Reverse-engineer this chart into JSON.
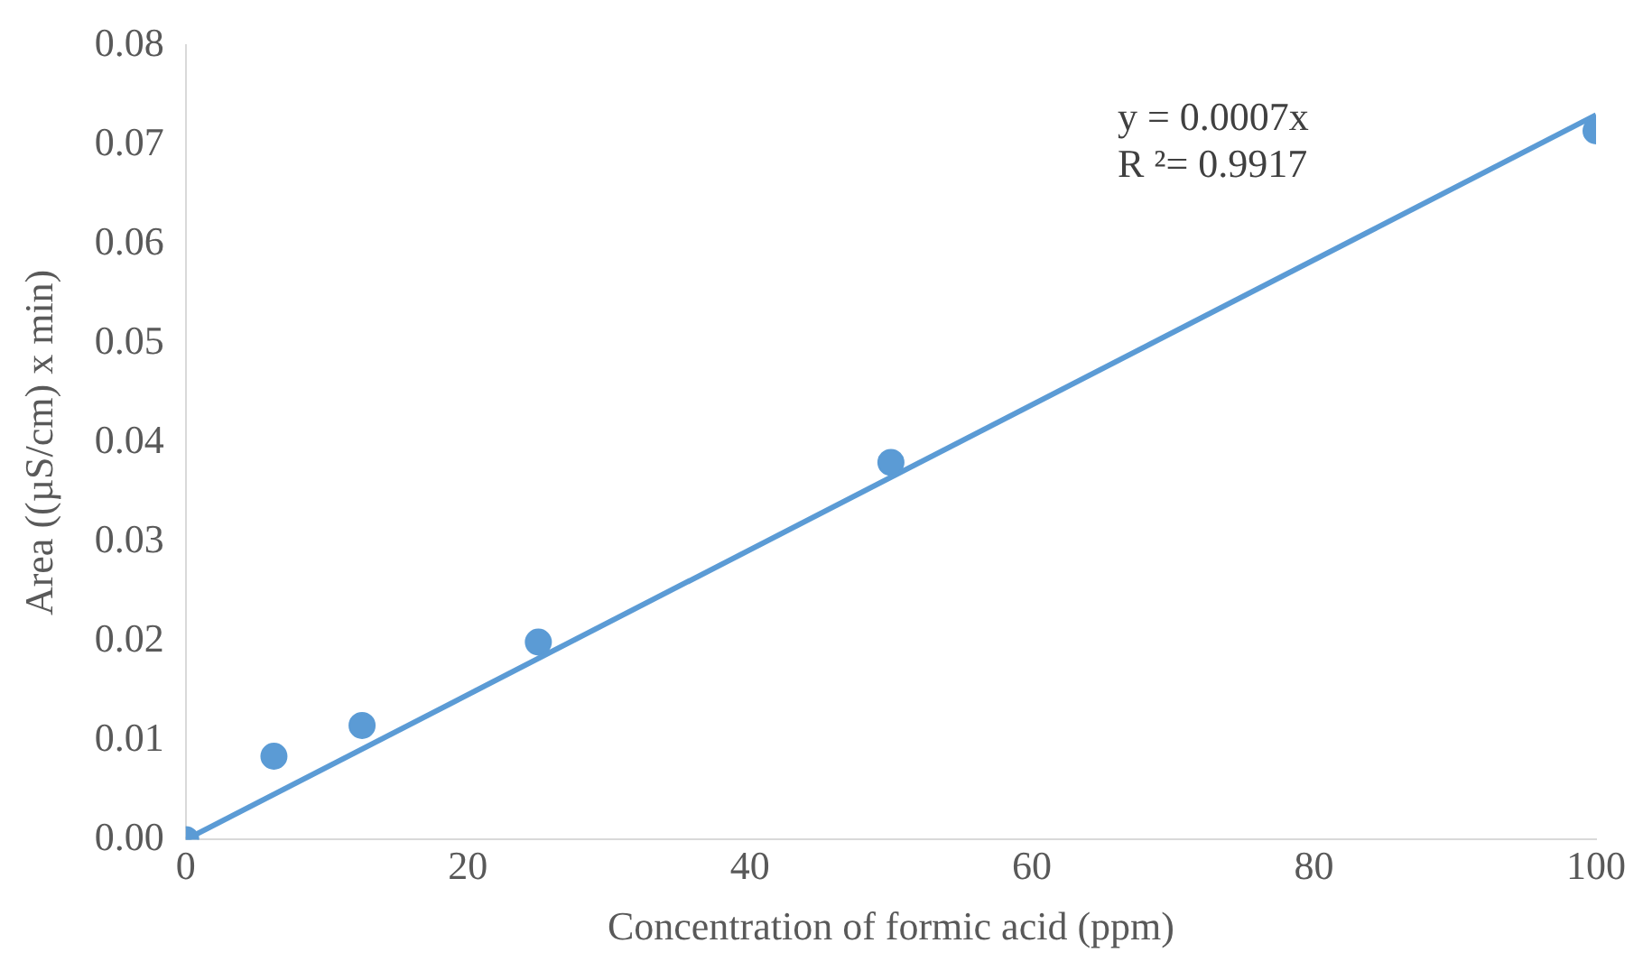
{
  "chart_data": {
    "type": "scatter",
    "xlabel": "Concentration of formic acid (ppm)",
    "ylabel": "Area ((µS/cm) x min)",
    "xlim": [
      0,
      100
    ],
    "xticks": [
      0,
      20,
      40,
      60,
      80,
      100
    ],
    "ylim": [
      0,
      0.08
    ],
    "yticks": [
      {
        "value": 0,
        "label": "0.00"
      },
      {
        "value": 0.01,
        "label": "0.01"
      },
      {
        "value": 0.02,
        "label": "0.02"
      },
      {
        "value": 0.03,
        "label": "0.03"
      },
      {
        "value": 0.04,
        "label": "0.04"
      },
      {
        "value": 0.05,
        "label": "0.05"
      },
      {
        "value": 0.06,
        "label": "0.06"
      },
      {
        "value": 0.07,
        "label": "0.07"
      },
      {
        "value": 0.08,
        "label": "0.08"
      }
    ],
    "grid": false,
    "legend": false,
    "series": [
      {
        "type": "scatter",
        "marker": "circle",
        "color": "#5b9bd5",
        "x": [
          0,
          6.25,
          12.5,
          25,
          50,
          100
        ],
        "values": [
          0,
          0.0084,
          0.0115,
          0.0199,
          0.038,
          0.0714
        ]
      },
      {
        "type": "line",
        "marker": "none",
        "color": "#5b9bd5",
        "x": [
          0,
          100
        ],
        "values": [
          0,
          0.073
        ]
      }
    ],
    "annotations": [
      "y = 0.0007x",
      "R ²= 0.9917"
    ]
  }
}
